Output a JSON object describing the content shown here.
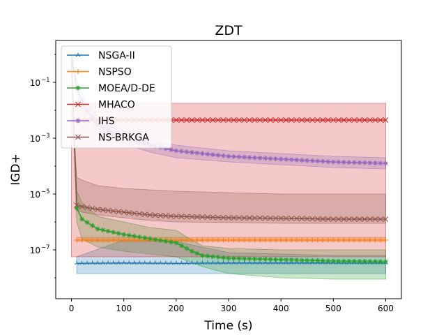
{
  "chart_data": {
    "type": "line",
    "title": "ZDT",
    "xlabel": "Time (s)",
    "ylabel": "IGD+",
    "xlim": [
      -30,
      630
    ],
    "ylim_log10": [
      -8.75,
      0.5
    ],
    "yscale": "log",
    "x_ticks": [
      0,
      100,
      200,
      300,
      400,
      500,
      600
    ],
    "y_ticks": [
      {
        "exp": -7,
        "base": "10",
        "sup": "−7"
      },
      {
        "exp": -5,
        "base": "10",
        "sup": "−5"
      },
      {
        "exp": -3,
        "base": "10",
        "sup": "−3"
      },
      {
        "exp": -1,
        "base": "10",
        "sup": "−1"
      }
    ],
    "legend_position": "upper-left",
    "series": [
      {
        "name": "NSGA-II",
        "color": "#1f77b4",
        "marker": "tri",
        "x": [
          10,
          100,
          200,
          300,
          400,
          500,
          600
        ],
        "log10": [
          -7.48,
          -7.47,
          -7.48,
          -7.47,
          -7.47,
          -7.47,
          -7.47
        ],
        "low": [
          -7.85,
          -7.85,
          -7.85,
          -7.85,
          -7.85,
          -7.85,
          -7.85
        ],
        "high": [
          -7.25,
          -6.65,
          -6.7,
          -7.1,
          -7.15,
          -7.2,
          -7.2
        ]
      },
      {
        "name": "NSPSO",
        "color": "#ff7f0e",
        "marker": "plus",
        "x": [
          10,
          100,
          200,
          300,
          400,
          500,
          600
        ],
        "log10": [
          -6.65,
          -6.65,
          -6.65,
          -6.65,
          -6.65,
          -6.65,
          -6.65
        ],
        "low": [
          -6.7,
          -6.7,
          -6.7,
          -6.7,
          -6.7,
          -6.7,
          -6.7
        ],
        "high": [
          -6.55,
          -6.55,
          -6.55,
          -6.55,
          -6.55,
          -6.55,
          -6.55
        ]
      },
      {
        "name": "MOEA/D-DE",
        "color": "#2ca02c",
        "marker": "star",
        "x": [
          0,
          10,
          20,
          50,
          100,
          150,
          200,
          230,
          250,
          300,
          400,
          500,
          600
        ],
        "log10": [
          -0.1,
          -5.5,
          -5.9,
          -6.25,
          -6.45,
          -6.6,
          -6.75,
          -7.05,
          -7.2,
          -7.3,
          -7.35,
          -7.4,
          -7.42
        ],
        "low": [
          -0.4,
          -6.0,
          -6.6,
          -6.9,
          -7.05,
          -7.15,
          -7.25,
          -7.45,
          -7.6,
          -7.85,
          -8.0,
          -8.05,
          -8.05
        ],
        "high": [
          0.1,
          -4.9,
          -5.3,
          -5.8,
          -6.0,
          -6.2,
          -6.3,
          -6.65,
          -6.85,
          -6.95,
          -7.0,
          -7.0,
          -7.0
        ]
      },
      {
        "name": "MHACO",
        "color": "#d62728",
        "marker": "x",
        "x": [
          0,
          10,
          100,
          200,
          300,
          400,
          500,
          600
        ],
        "log10": [
          -2.35,
          -2.35,
          -2.35,
          -2.35,
          -2.35,
          -2.35,
          -2.35,
          -2.35
        ],
        "low": [
          -7.25,
          -7.25,
          -7.25,
          -7.25,
          -7.25,
          -7.25,
          -7.25,
          -7.25
        ],
        "high": [
          -1.75,
          -1.75,
          -1.75,
          -1.75,
          -1.75,
          -1.75,
          -1.75,
          -1.75
        ]
      },
      {
        "name": "IHS",
        "color": "#9467bd",
        "marker": "star",
        "x": [
          0,
          10,
          25,
          50,
          75,
          100,
          150,
          200,
          300,
          400,
          500,
          600
        ],
        "log10": [
          0.0,
          -1.2,
          -1.9,
          -2.5,
          -2.75,
          -2.95,
          -3.25,
          -3.45,
          -3.65,
          -3.75,
          -3.85,
          -3.9
        ],
        "low": [
          0.0,
          -1.5,
          -2.2,
          -2.75,
          -2.95,
          -3.2,
          -3.5,
          -3.7,
          -3.85,
          -3.95,
          -4.05,
          -4.1
        ],
        "high": [
          0.0,
          -0.9,
          -1.6,
          -2.2,
          -2.5,
          -2.75,
          -3.05,
          -3.25,
          -3.45,
          -3.55,
          -3.65,
          -3.7
        ]
      },
      {
        "name": "NS-BRKGA",
        "color": "#8c564b",
        "marker": "x",
        "x": [
          0,
          5,
          10,
          20,
          50,
          100,
          150,
          200,
          300,
          400,
          500,
          600
        ],
        "log10": [
          0.0,
          -3.0,
          -5.4,
          -5.45,
          -5.55,
          -5.65,
          -5.75,
          -5.8,
          -5.85,
          -5.87,
          -5.9,
          -5.9
        ],
        "low": [
          0.0,
          -3.2,
          -5.6,
          -5.65,
          -5.75,
          -5.85,
          -5.95,
          -6.0,
          -6.02,
          -6.05,
          -6.05,
          -6.05
        ],
        "high": [
          0.0,
          -2.8,
          -4.4,
          -4.5,
          -4.7,
          -4.8,
          -4.85,
          -4.9,
          -4.95,
          -5.0,
          -5.0,
          -5.0
        ]
      }
    ]
  }
}
